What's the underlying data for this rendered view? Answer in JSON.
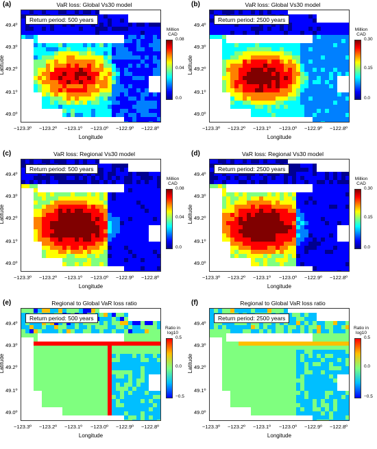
{
  "colors": {
    "jet": [
      "#00008f",
      "#0000ff",
      "#0080ff",
      "#00ffff",
      "#80ff80",
      "#ffff00",
      "#ff8000",
      "#ff0000",
      "#800000"
    ],
    "ratio": [
      "#0000ff",
      "#00bfff",
      "#7fff7f",
      "#ffbf00",
      "#ff0000"
    ]
  },
  "axis": {
    "ylabel": "Latitude",
    "xlabel": "Longitude",
    "yticks": [
      "49.4º",
      "49.3º",
      "49.2º",
      "49.1º",
      "49.0º"
    ],
    "xticks": [
      "−123.3º",
      "−123.2º",
      "−123.1º",
      "−123.0º",
      "−122.9º",
      "−122.8º"
    ]
  },
  "panels": [
    {
      "label": "(a)",
      "title": "VaR loss: Global Vs30 model",
      "return_period": "Return period: 500 years",
      "cbar_title": [
        "Million",
        "CAD"
      ],
      "cbar_ticks": [
        "0.08",
        "0.04",
        "0.0"
      ],
      "scheme": "jet",
      "intensity": "low"
    },
    {
      "label": "(b)",
      "title": "VaR loss: Global Vs30 model",
      "return_period": "Return period: 2500 years",
      "cbar_title": [
        "Million",
        "CAD"
      ],
      "cbar_ticks": [
        "0.30",
        "0.15",
        "0.0"
      ],
      "scheme": "jet",
      "intensity": "high"
    },
    {
      "label": "(c)",
      "title": "VaR loss: Regional Vs30 model",
      "return_period": "Return period: 500 years",
      "cbar_title": [
        "Million",
        "CAD"
      ],
      "cbar_ticks": [
        "0.08",
        "0.04",
        "0.0"
      ],
      "scheme": "jet",
      "intensity": "highreg"
    },
    {
      "label": "(d)",
      "title": "VaR loss: Regional Vs30 model",
      "return_period": "Return period: 2500 years",
      "cbar_title": [
        "Million",
        "CAD"
      ],
      "cbar_ticks": [
        "0.30",
        "0.15",
        "0.0"
      ],
      "scheme": "jet",
      "intensity": "highreg"
    },
    {
      "label": "(e)",
      "title": "Regional to Global VaR loss ratio",
      "return_period": "Return period: 500 years",
      "cbar_title": [
        "Ratio in",
        "log10"
      ],
      "cbar_ticks": [
        "0.5",
        "0.0",
        "−0.5"
      ],
      "scheme": "ratio",
      "intensity": "ratio1"
    },
    {
      "label": "(f)",
      "title": "Regional to Global VaR loss ratio",
      "return_period": "Return period: 2500 years",
      "cbar_title": [
        "Ratio in",
        "log10"
      ],
      "cbar_ticks": [
        "0.5",
        "0.0",
        "−0.5"
      ],
      "scheme": "ratio",
      "intensity": "ratio2"
    }
  ]
}
